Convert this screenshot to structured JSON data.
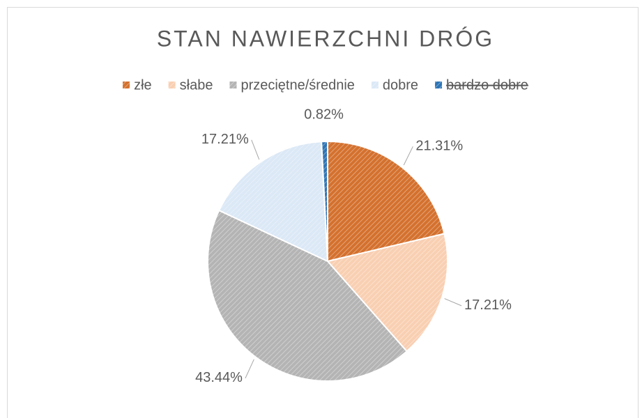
{
  "chart_data": {
    "type": "pie",
    "title": "STAN NAWIERZCHNI DRÓG",
    "categories": [
      "złe",
      "słabe",
      "przeciętne/średnie",
      "dobre",
      "bardzo dobre"
    ],
    "values": [
      21.31,
      17.21,
      43.44,
      17.21,
      0.82
    ],
    "value_labels": [
      "21.31%",
      "17.21%",
      "43.44%",
      "17.21%",
      "0.82%"
    ],
    "colors": [
      "#d4712e",
      "#f9cfb2",
      "#b4b4b4",
      "#dbe8f6",
      "#2e75b6"
    ],
    "legend_strikethrough": [
      false,
      false,
      false,
      false,
      true
    ],
    "legend": "top",
    "pattern": "hatched"
  }
}
